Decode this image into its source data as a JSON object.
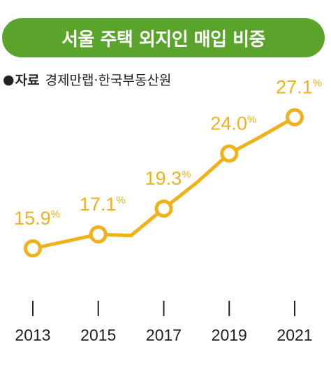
{
  "header": {
    "title": "서울 주택 외지인 매입 비중",
    "source_marker": "●",
    "source_label": "자료",
    "source_text": "경제만랩·한국부동산원"
  },
  "colors": {
    "title_bg": "#5ba42c",
    "line": "#f0b21a",
    "marker_fill": "#ffffff",
    "text": "#222222"
  },
  "chart_data": {
    "type": "line",
    "title": "서울 주택 외지인 매입 비중",
    "unit": "%",
    "x_ticks": [
      "2013",
      "2015",
      "2017",
      "2019",
      "2021"
    ],
    "ylim": [
      10,
      30
    ],
    "series": [
      {
        "points": [
          {
            "x": 2013,
            "y": 15.9,
            "label": "15.9"
          },
          {
            "x": 2015,
            "y": 17.1,
            "label": "17.1"
          },
          {
            "x": 2016,
            "y": 17.0,
            "label": ""
          },
          {
            "x": 2017,
            "y": 19.3,
            "label": "19.3"
          },
          {
            "x": 2018,
            "y": 21.5,
            "label": ""
          },
          {
            "x": 2019,
            "y": 24.0,
            "label": "24.0"
          },
          {
            "x": 2020,
            "y": 25.5,
            "label": ""
          },
          {
            "x": 2021,
            "y": 27.1,
            "label": "27.1"
          }
        ]
      }
    ]
  }
}
